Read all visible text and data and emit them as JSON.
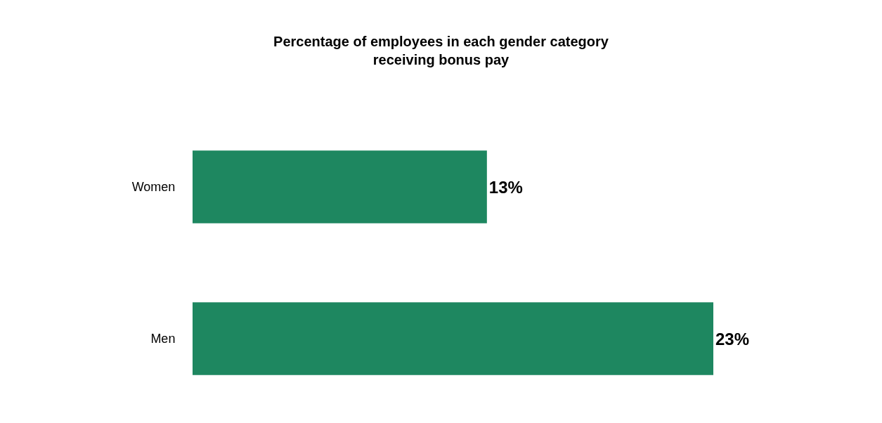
{
  "chart_data": {
    "type": "bar",
    "orientation": "horizontal",
    "title": "Percentage of employees in each gender category\nreceiving bonus pay",
    "categories": [
      "Women",
      "Men"
    ],
    "values": [
      13,
      23
    ],
    "color": "#1e8760",
    "value_labels": [
      "13%",
      "23%"
    ]
  }
}
